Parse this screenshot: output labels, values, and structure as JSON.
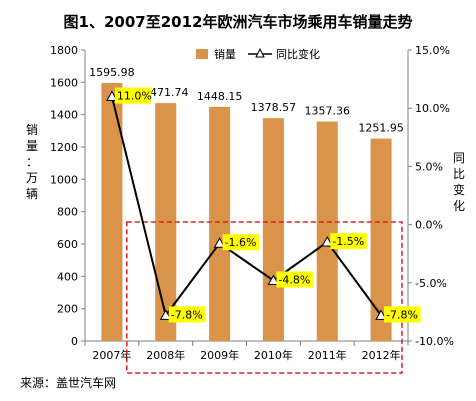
{
  "chart_data": {
    "type": "bar",
    "title": "图1、2007至2012年欧洲汽车市场乘用车销量走势",
    "categories": [
      "2007年",
      "2008年",
      "2009年",
      "2010年",
      "2011年",
      "2012年"
    ],
    "series": [
      {
        "name": "销量",
        "type": "bar",
        "axis": "left",
        "values": [
          1595.98,
          1471.74,
          1448.15,
          1378.57,
          1357.36,
          1251.95
        ],
        "labels": [
          "1595.98",
          "1471.74",
          "1448.15",
          "1378.57",
          "1357.36",
          "1251.95"
        ],
        "color": "#D9944A"
      },
      {
        "name": "同比变化",
        "type": "line",
        "axis": "right",
        "values": [
          11.0,
          -7.8,
          -1.6,
          -4.8,
          -1.5,
          -7.8
        ],
        "labels": [
          "11.0%",
          "-7.8%",
          "-1.6%",
          "-4.8%",
          "-1.5%",
          "-7.8%"
        ],
        "color": "#000000",
        "label_bg": "#FFFF00"
      }
    ],
    "y_left": {
      "label": [
        "销",
        "量",
        "：",
        "万",
        "辆"
      ],
      "ticks": [
        "0",
        "200",
        "400",
        "600",
        "800",
        "1000",
        "1200",
        "1400",
        "1600",
        "1800"
      ],
      "range": [
        0,
        1800
      ]
    },
    "y_right": {
      "label": [
        "同",
        "比",
        "变",
        "化"
      ],
      "ticks": [
        "-10.0%",
        "-5.0%",
        "0.0%",
        "5.0%",
        "10.0%",
        "15.0%"
      ],
      "range": [
        -10,
        15
      ]
    },
    "legend_position": "top",
    "grid": false,
    "highlight_box_color": "#E02020",
    "source": "来源：盖世汽车网"
  }
}
